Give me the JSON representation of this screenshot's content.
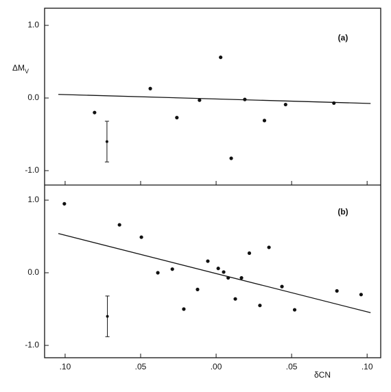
{
  "chart_data": [
    {
      "type": "scatter",
      "label": "(a)",
      "y_label": "ΔM",
      "y_label_sub": "V",
      "color": "#111111",
      "x": [
        -0.0805,
        -0.0436,
        -0.026,
        -0.011,
        0.003,
        0.01,
        0.019,
        0.032,
        0.046,
        0.078
      ],
      "y": [
        -0.2,
        0.13,
        -0.27,
        -0.03,
        0.56,
        -0.83,
        -0.02,
        -0.31,
        -0.09,
        -0.07
      ],
      "fit": {
        "x": [
          -0.1045,
          0.1023
        ],
        "y": [
          0.05,
          -0.075
        ]
      },
      "error_bar": {
        "x": -0.0723,
        "y": -0.6,
        "err": 0.28
      },
      "xlim": [
        -0.1136,
        0.109
      ],
      "ylim": [
        -1.198,
        1.236
      ],
      "xticks": [
        -0.1,
        -0.05,
        0,
        0.05,
        0.1
      ],
      "yticks": [
        {
          "value": 1,
          "label": "1.0"
        },
        {
          "value": 0,
          "label": "0.0"
        },
        {
          "value": -1,
          "label": "-1.0"
        }
      ]
    },
    {
      "type": "scatter",
      "label": "(b)",
      "x_label": "δCN",
      "color": "#111111",
      "x": [
        -0.1005,
        -0.064,
        -0.0495,
        -0.0386,
        -0.029,
        -0.0214,
        -0.0123,
        -0.0055,
        0.0014,
        0.005,
        0.008,
        0.0127,
        0.0168,
        0.022,
        0.029,
        0.035,
        0.0436,
        0.052,
        0.08,
        0.096
      ],
      "y": [
        0.95,
        0.66,
        0.49,
        0.0,
        0.05,
        -0.5,
        -0.23,
        0.16,
        0.06,
        0.01,
        -0.07,
        -0.36,
        -0.07,
        0.27,
        -0.45,
        0.35,
        -0.19,
        -0.51,
        -0.25,
        -0.3
      ],
      "fit": {
        "x": [
          -0.1045,
          0.1023
        ],
        "y": [
          0.54,
          -0.55
        ]
      },
      "error_bar": {
        "x": -0.072,
        "y": -0.6,
        "err": 0.28
      },
      "xlim": [
        -0.1136,
        0.109
      ],
      "ylim": [
        -1.17,
        1.208
      ],
      "xticks": [
        {
          "value": -0.1,
          "label": ".10"
        },
        {
          "value": -0.05,
          "label": ".05"
        },
        {
          "value": 0,
          "label": ".00"
        },
        {
          "value": 0.05,
          "label": ".05"
        },
        {
          "value": 0.1,
          "label": ".10"
        }
      ],
      "yticks": [
        {
          "value": 1,
          "label": "1.0"
        },
        {
          "value": 0,
          "label": "0.0"
        },
        {
          "value": -1,
          "label": "-1.0"
        }
      ]
    }
  ]
}
